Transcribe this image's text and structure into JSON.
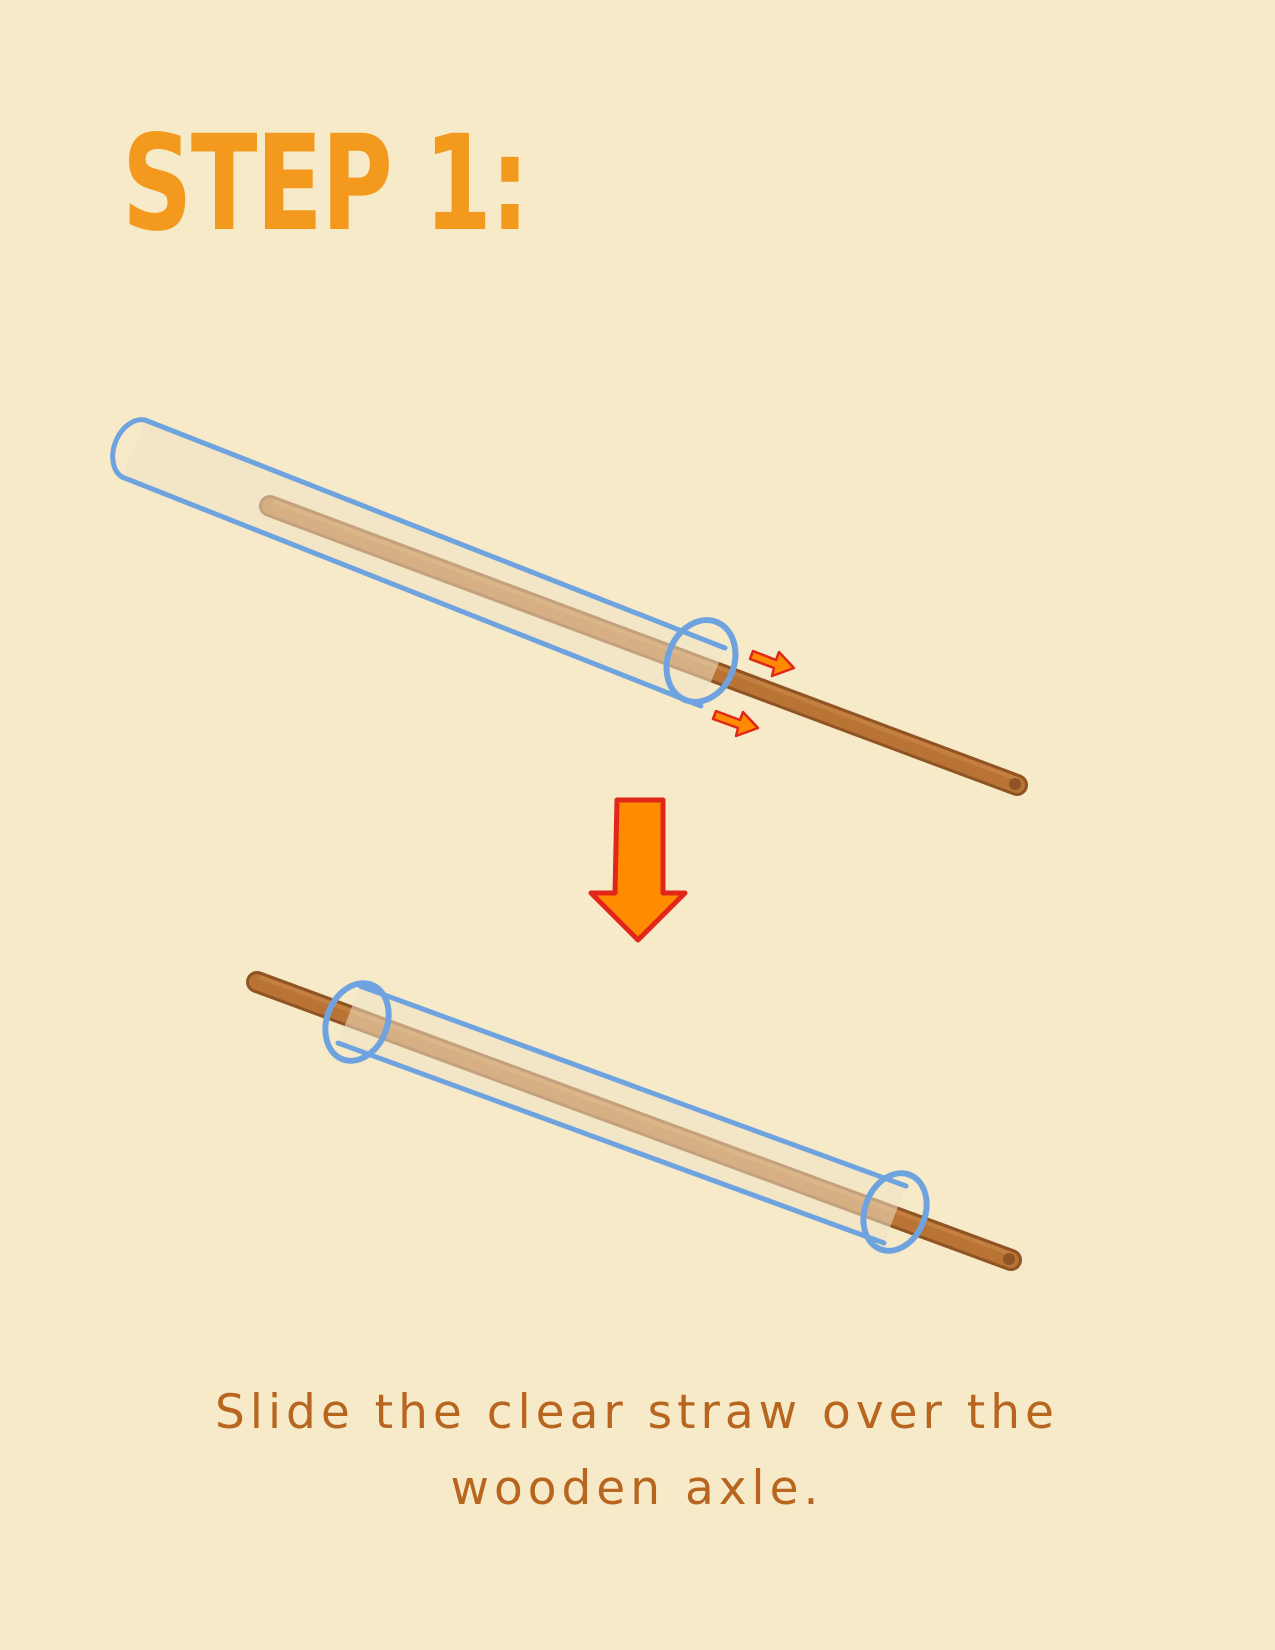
{
  "heading": {
    "title": "STEP 1:"
  },
  "instruction": {
    "text": "Slide the clear straw over the wooden axle."
  },
  "colors": {
    "background": "#f7eac8",
    "title": "#f39a1e",
    "instruction_text": "#b8661f",
    "straw_outline": "#6fa3e0",
    "straw_fill": "#efe2c4",
    "axle": "#b87335",
    "axle_dark": "#8f5324",
    "arrow_fill": "#ff8c00",
    "arrow_outline": "#e0271a"
  },
  "icons": {
    "straw": "clear-straw-icon",
    "axle": "wooden-axle-icon",
    "motion_arrows": "small-motion-arrow-icon",
    "down_arrow": "down-arrow-icon"
  }
}
